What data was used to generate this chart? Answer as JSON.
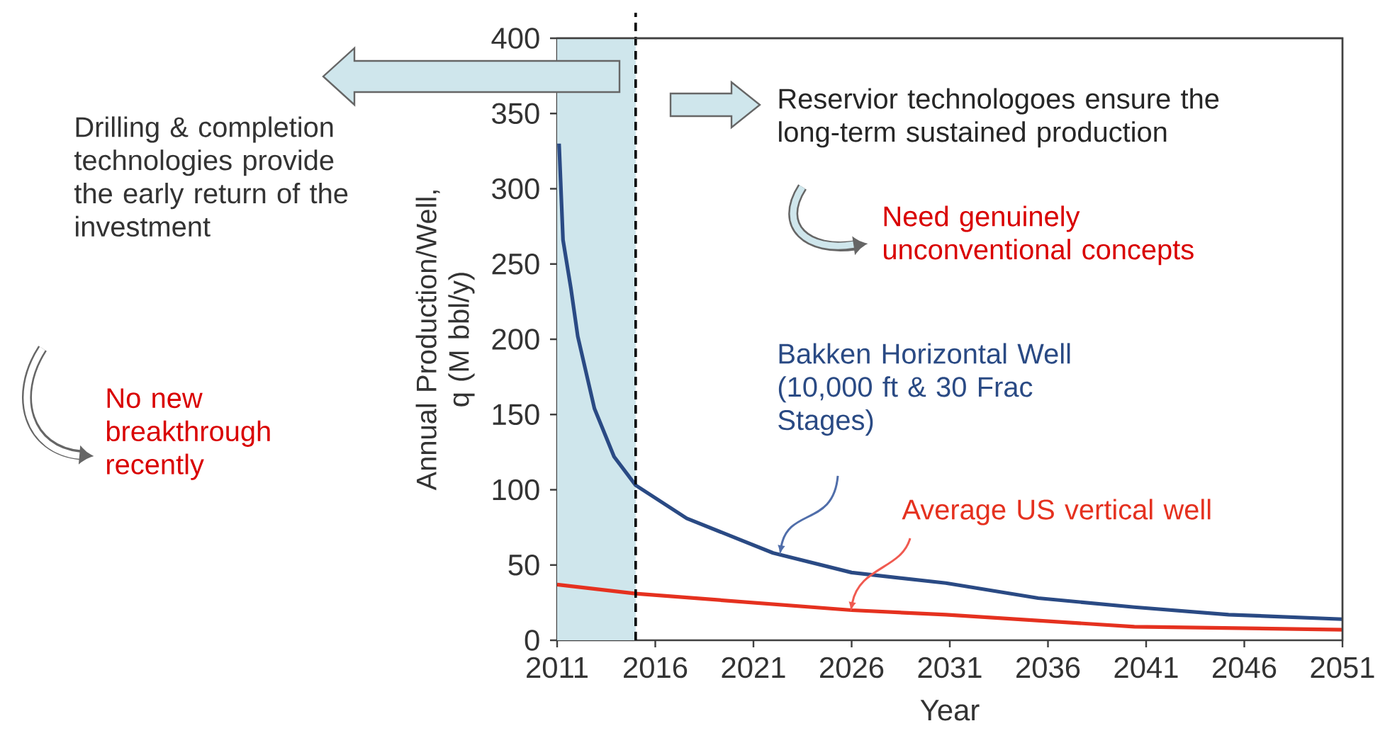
{
  "chart_data": {
    "type": "line",
    "xlabel": "Year",
    "ylabel": "Annual Production/Well, q (M bbl/y)",
    "series": [
      {
        "name": "Bakken Horizontal Well (10,000 ft & 30 Frac Stages)",
        "color": "#2a4a84",
        "x": [
          2011.1,
          2011.3,
          2011.7,
          2012.05,
          2012.9,
          2013.9,
          2015,
          2017.6,
          2022,
          2026,
          2030.8,
          2035.5,
          2040.4,
          2045.2,
          2051
        ],
        "values": [
          330,
          266,
          234,
          202,
          154,
          122,
          103,
          81,
          58,
          45,
          38,
          28,
          22,
          17,
          14
        ]
      },
      {
        "name": "Average US vertical well",
        "color": "#e5311f",
        "x": [
          2011,
          2015,
          2026,
          2030.8,
          2040.4,
          2051
        ],
        "values": [
          37,
          31,
          20,
          17,
          9,
          7
        ]
      }
    ],
    "xlim": [
      2011,
      2051
    ],
    "ylim": [
      0,
      400
    ],
    "xticks": [
      2011,
      2016,
      2021,
      2026,
      2031,
      2036,
      2041,
      2046,
      2051
    ],
    "yticks": [
      0,
      50,
      100,
      150,
      200,
      250,
      300,
      350,
      400
    ],
    "grid": false,
    "ref_lines": [
      {
        "axis": "x",
        "value": 2015,
        "line_style": "dashed"
      }
    ],
    "bands": [
      {
        "axis": "x",
        "from": 2011,
        "to": 2015,
        "color": "#cfe6ec"
      }
    ],
    "annotations": [
      "Drilling & completion technologies provide the early return of the investment",
      "Reservior technologoes ensure the long-term sustained production",
      "Need genuinely unconventional concepts",
      "No new breakthrough recently"
    ]
  }
}
